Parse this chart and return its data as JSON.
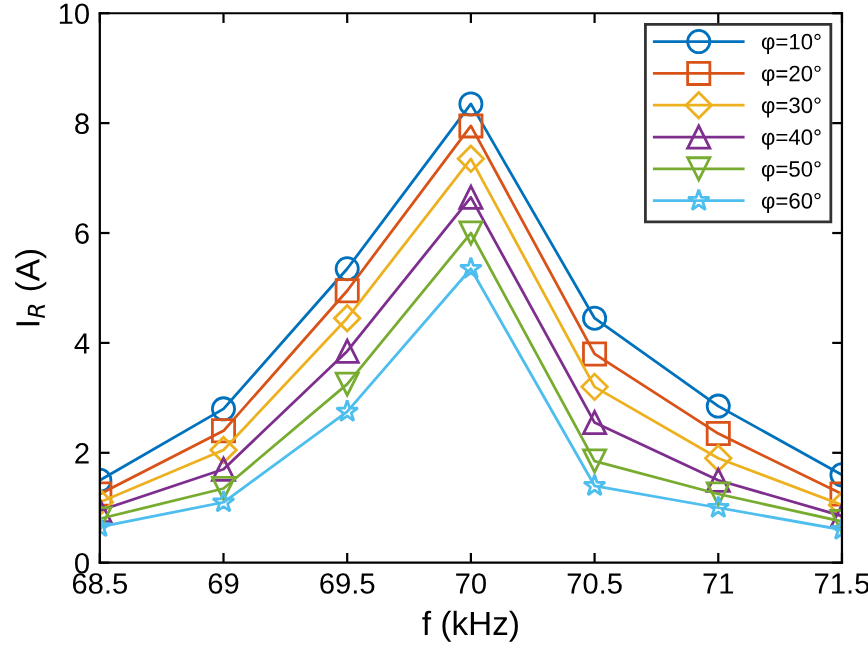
{
  "chart_data": {
    "type": "line",
    "xlabel": "f (kHz)",
    "ylabel": "I$_{R}$ (A)",
    "x": [
      68.5,
      69,
      69.5,
      70,
      70.5,
      71,
      71.5
    ],
    "xlim": [
      68.5,
      71.5
    ],
    "xticks": [
      68.5,
      69,
      69.5,
      70,
      70.5,
      71,
      71.5
    ],
    "ylim": [
      0,
      10
    ],
    "yticks": [
      0,
      2,
      4,
      6,
      8,
      10
    ],
    "grid": false,
    "legend": "top right",
    "series": [
      {
        "name": "φ=10°",
        "color": "#0072bd",
        "marker": "circle",
        "values": [
          1.5,
          2.8,
          5.35,
          8.35,
          4.45,
          2.85,
          1.6
        ]
      },
      {
        "name": "φ=20°",
        "color": "#d95319",
        "marker": "square",
        "values": [
          1.25,
          2.4,
          4.95,
          7.95,
          3.8,
          2.35,
          1.25
        ]
      },
      {
        "name": "φ=30°",
        "color": "#edb120",
        "marker": "diamond",
        "values": [
          1.1,
          2.05,
          4.45,
          7.35,
          3.2,
          1.9,
          1.05
        ]
      },
      {
        "name": "φ=40°",
        "color": "#7e2f8e",
        "marker": "triangle",
        "values": [
          0.95,
          1.7,
          3.85,
          6.65,
          2.55,
          1.5,
          0.85
        ]
      },
      {
        "name": "φ=50°",
        "color": "#77ac30",
        "marker": "triangle_down",
        "values": [
          0.8,
          1.35,
          3.25,
          6.0,
          1.85,
          1.25,
          0.75
        ]
      },
      {
        "name": "φ=60°",
        "color": "#4dbeee",
        "marker": "star",
        "values": [
          0.65,
          1.1,
          2.75,
          5.35,
          1.4,
          1.0,
          0.6
        ]
      }
    ]
  }
}
